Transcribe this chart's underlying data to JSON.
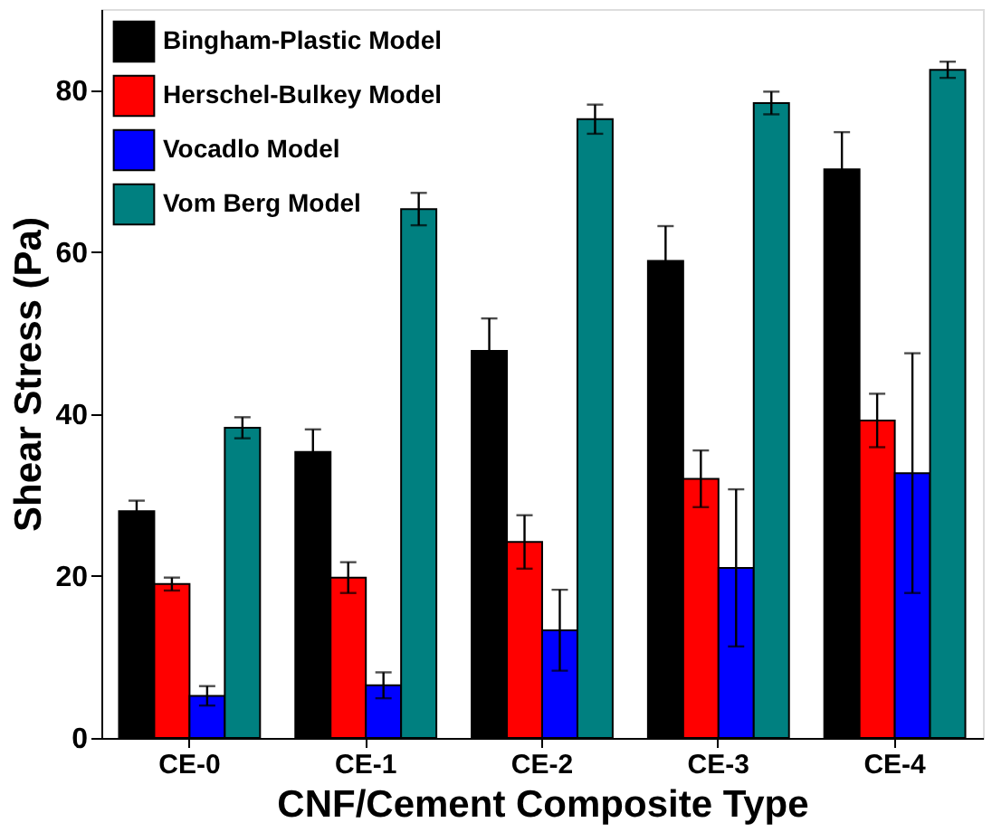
{
  "chart_data": {
    "type": "bar",
    "xlabel": "CNF/Cement Composite Type",
    "ylabel": "Shear Stress (Pa)",
    "categories": [
      "CE-0",
      "CE-1",
      "CE-2",
      "CE-3",
      "CE-4"
    ],
    "series": [
      {
        "name": "Bingham-Plastic Model",
        "color": "#000000",
        "values": [
          28,
          35.3,
          47.8,
          58.9,
          70.2
        ],
        "errors": [
          1.3,
          2.8,
          4,
          4.3,
          4.6
        ]
      },
      {
        "name": "Herschel-Bulkey Model",
        "color": "#ff0000",
        "values": [
          19,
          19.8,
          24.2,
          32,
          39.2
        ],
        "errors": [
          0.8,
          1.9,
          3.3,
          3.5,
          3.3
        ]
      },
      {
        "name": "Vocadlo Model",
        "color": "#0000ff",
        "values": [
          5.2,
          6.5,
          13.3,
          21,
          32.7
        ],
        "errors": [
          1.2,
          1.6,
          5,
          9.7,
          14.8
        ]
      },
      {
        "name": "Vom Berg Model",
        "color": "#008080",
        "values": [
          38.3,
          65.3,
          76.4,
          78.4,
          82.5
        ],
        "errors": [
          1.3,
          2,
          1.8,
          1.4,
          1
        ]
      }
    ],
    "ylim": [
      0,
      90
    ],
    "yticks": [
      0,
      20,
      40,
      60,
      80
    ],
    "grid": false,
    "legend": "top left"
  }
}
